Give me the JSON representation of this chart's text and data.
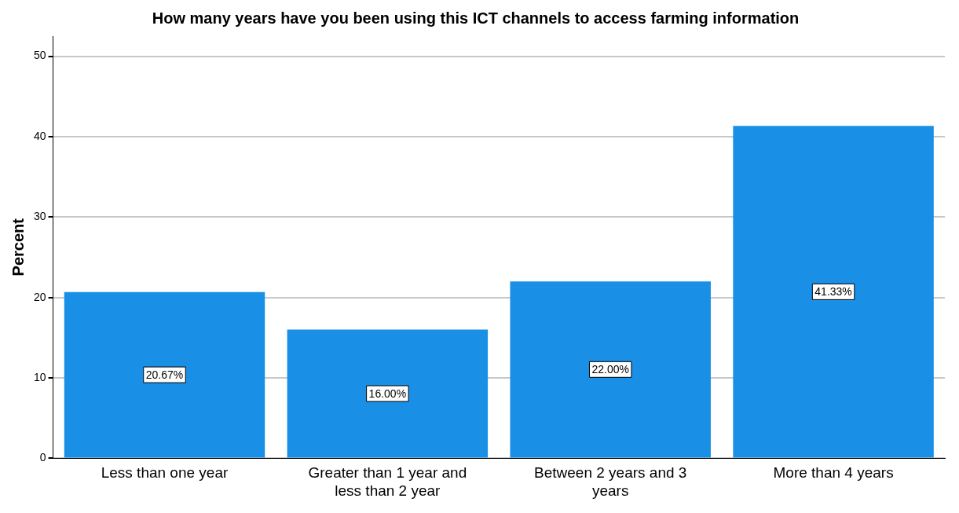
{
  "chart_data": {
    "type": "bar",
    "title": "How many years have you been using this ICT channels to access farming information",
    "ylabel": "Percent",
    "categories": [
      "Less than one year",
      "Greater than 1 year and less than 2 year",
      "Between 2 years and 3 years",
      "More than 4 years"
    ],
    "values": [
      20.67,
      16.0,
      22.0,
      41.33
    ],
    "value_labels": [
      "20.67%",
      "16.00%",
      "22.00%",
      "41.33%"
    ],
    "color": "#1a8fe6",
    "ylim": [
      0,
      52.5
    ],
    "yticks": [
      0,
      10,
      20,
      30,
      40,
      50
    ],
    "grid": "y",
    "legend": false
  }
}
